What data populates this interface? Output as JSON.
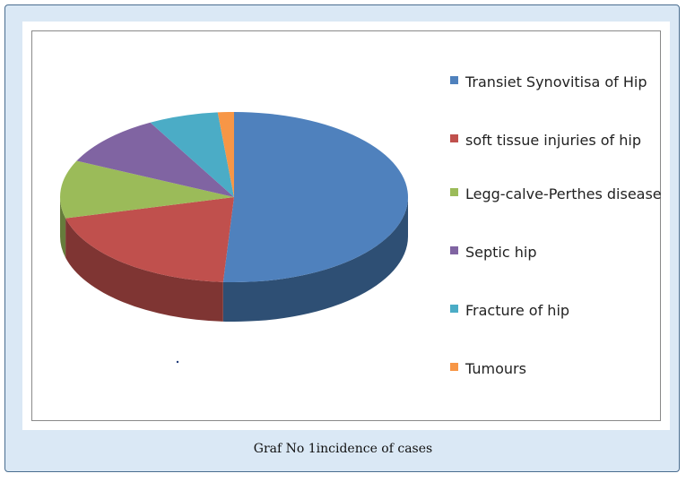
{
  "caption": "Graf No 1incidence of cases",
  "chart_data": {
    "type": "pie",
    "style": "3d",
    "title": "",
    "legend_position": "right",
    "categories": [
      "Transiet Synovitisa of Hip",
      "soft tissue injuries of hip",
      "Legg-calve-Perthes disease",
      "Septic hip",
      "Fracture of hip",
      "Tumours"
    ],
    "values": [
      51,
      20,
      11,
      10,
      6.5,
      1.5
    ],
    "unit": "%",
    "colors": [
      "#4f81bd",
      "#c0504d",
      "#9bbb59",
      "#8064a2",
      "#4bacc6",
      "#f79646"
    ],
    "side_colors": [
      "#2e4f74",
      "#7f3533",
      "#667c3b",
      "#54426a",
      "#317185",
      "#a3632e"
    ]
  }
}
